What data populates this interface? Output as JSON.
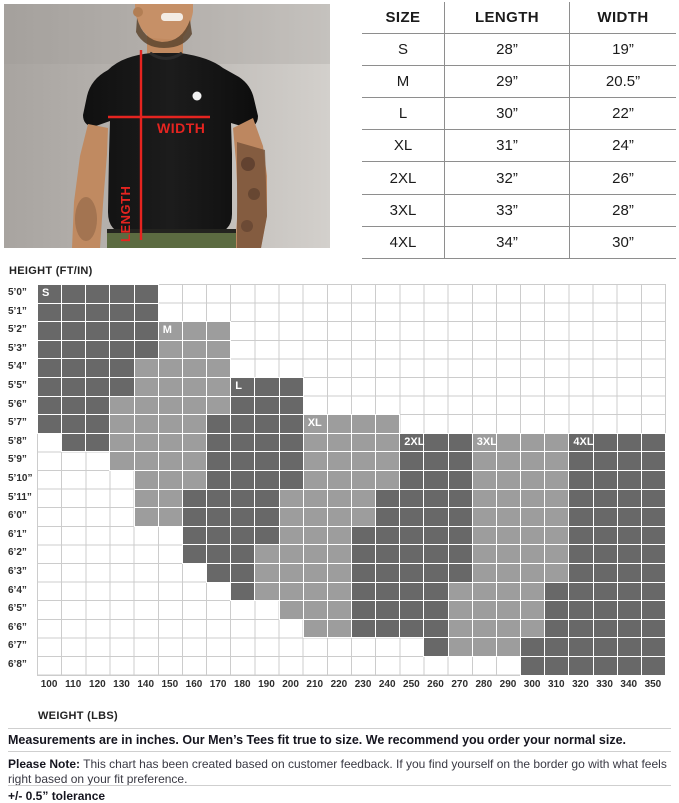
{
  "colors": {
    "accent_red": "#e52420",
    "cell_dark": "#686868",
    "cell_medium": "#9d9d9d",
    "grid_line": "#cccccc"
  },
  "photo": {
    "width_label": "WIDTH",
    "length_label": "LENGTH"
  },
  "notes": {
    "line1": "Measurements are in inches. Our Men’s Tees fit true to size. We recommend you order your normal size.",
    "note_label": "Please Note:",
    "note_rest": " This chart has been created based on customer feedback. If you find yourself on the border go with what feels right based on your fit preference.",
    "tolerance": "+/- 0.5” tolerance"
  },
  "chart_data": [
    {
      "type": "table",
      "title": "T-shirt measurements by size",
      "columns": [
        "SIZE",
        "LENGTH",
        "WIDTH"
      ],
      "rows": [
        [
          "S",
          "28”",
          "19”"
        ],
        [
          "M",
          "29”",
          "20.5”"
        ],
        [
          "L",
          "30”",
          "22”"
        ],
        [
          "XL",
          "31”",
          "24”"
        ],
        [
          "2XL",
          "32”",
          "26”"
        ],
        [
          "3XL",
          "33”",
          "28”"
        ],
        [
          "4XL",
          "34”",
          "30”"
        ]
      ]
    },
    {
      "type": "heatmap",
      "title": "Recommended size by height and weight",
      "y_axis_title": "HEIGHT (FT/IN)",
      "x_axis_title": "WEIGHT (LBS)",
      "y": [
        "5’0”",
        "5’1”",
        "5’2”",
        "5’3”",
        "5’4”",
        "5’5”",
        "5’6”",
        "5’7”",
        "5’8”",
        "5’9”",
        "5’10”",
        "5’11”",
        "6’0”",
        "6’1”",
        "6’2”",
        "6’3”",
        "6’4”",
        "6’5”",
        "6’6”",
        "6’7”",
        "6’8”"
      ],
      "x": [
        "100",
        "110",
        "120",
        "130",
        "140",
        "150",
        "160",
        "170",
        "180",
        "190",
        "200",
        "210",
        "220",
        "230",
        "240",
        "250",
        "260",
        "270",
        "280",
        "290",
        "300",
        "310",
        "320",
        "330",
        "340",
        "350"
      ],
      "shade_by_size": {
        "S": "dark",
        "M": "medium",
        "L": "dark",
        "XL": "medium",
        "2XL": "dark",
        "3XL": "medium",
        "4XL": "dark"
      },
      "colors": {
        "dark": "#686868",
        "medium": "#9d9d9d"
      },
      "size_labels": [
        {
          "text": "S",
          "row": 0,
          "col": 0
        },
        {
          "text": "M",
          "row": 2,
          "col": 5
        },
        {
          "text": "L",
          "row": 5,
          "col": 8
        },
        {
          "text": "XL",
          "row": 7,
          "col": 11
        },
        {
          "text": "2XL",
          "row": 8,
          "col": 15
        },
        {
          "text": "3XL",
          "row": 8,
          "col": 18
        },
        {
          "text": "4XL",
          "row": 8,
          "col": 22
        }
      ],
      "rows": [
        [
          {
            "size": "S",
            "start": 0,
            "end": 4
          }
        ],
        [
          {
            "size": "S",
            "start": 0,
            "end": 4
          }
        ],
        [
          {
            "size": "S",
            "start": 0,
            "end": 4
          },
          {
            "size": "M",
            "start": 5,
            "end": 7
          }
        ],
        [
          {
            "size": "S",
            "start": 0,
            "end": 4
          },
          {
            "size": "M",
            "start": 5,
            "end": 7
          }
        ],
        [
          {
            "size": "S",
            "start": 0,
            "end": 3
          },
          {
            "size": "M",
            "start": 4,
            "end": 7
          }
        ],
        [
          {
            "size": "S",
            "start": 0,
            "end": 3
          },
          {
            "size": "M",
            "start": 4,
            "end": 7
          },
          {
            "size": "L",
            "start": 8,
            "end": 10
          }
        ],
        [
          {
            "size": "S",
            "start": 0,
            "end": 2
          },
          {
            "size": "M",
            "start": 3,
            "end": 7
          },
          {
            "size": "L",
            "start": 8,
            "end": 10
          }
        ],
        [
          {
            "size": "S",
            "start": 0,
            "end": 2
          },
          {
            "size": "M",
            "start": 3,
            "end": 6
          },
          {
            "size": "L",
            "start": 7,
            "end": 10
          },
          {
            "size": "XL",
            "start": 11,
            "end": 14
          }
        ],
        [
          {
            "size": "S",
            "start": 1,
            "end": 2
          },
          {
            "size": "M",
            "start": 3,
            "end": 6
          },
          {
            "size": "L",
            "start": 7,
            "end": 10
          },
          {
            "size": "XL",
            "start": 11,
            "end": 14
          },
          {
            "size": "2XL",
            "start": 15,
            "end": 17
          },
          {
            "size": "3XL",
            "start": 18,
            "end": 21
          },
          {
            "size": "4XL",
            "start": 22,
            "end": 25
          }
        ],
        [
          {
            "size": "M",
            "start": 3,
            "end": 6
          },
          {
            "size": "L",
            "start": 7,
            "end": 10
          },
          {
            "size": "XL",
            "start": 11,
            "end": 14
          },
          {
            "size": "2XL",
            "start": 15,
            "end": 17
          },
          {
            "size": "3XL",
            "start": 18,
            "end": 21
          },
          {
            "size": "4XL",
            "start": 22,
            "end": 25
          }
        ],
        [
          {
            "size": "M",
            "start": 4,
            "end": 6
          },
          {
            "size": "L",
            "start": 7,
            "end": 10
          },
          {
            "size": "XL",
            "start": 11,
            "end": 14
          },
          {
            "size": "2XL",
            "start": 15,
            "end": 17
          },
          {
            "size": "3XL",
            "start": 18,
            "end": 21
          },
          {
            "size": "4XL",
            "start": 22,
            "end": 25
          }
        ],
        [
          {
            "size": "M",
            "start": 4,
            "end": 5
          },
          {
            "size": "L",
            "start": 6,
            "end": 9
          },
          {
            "size": "XL",
            "start": 10,
            "end": 13
          },
          {
            "size": "2XL",
            "start": 14,
            "end": 17
          },
          {
            "size": "3XL",
            "start": 18,
            "end": 21
          },
          {
            "size": "4XL",
            "start": 22,
            "end": 25
          }
        ],
        [
          {
            "size": "M",
            "start": 4,
            "end": 5
          },
          {
            "size": "L",
            "start": 6,
            "end": 9
          },
          {
            "size": "XL",
            "start": 10,
            "end": 13
          },
          {
            "size": "2XL",
            "start": 14,
            "end": 17
          },
          {
            "size": "3XL",
            "start": 18,
            "end": 21
          },
          {
            "size": "4XL",
            "start": 22,
            "end": 25
          }
        ],
        [
          {
            "size": "L",
            "start": 6,
            "end": 9
          },
          {
            "size": "XL",
            "start": 10,
            "end": 12
          },
          {
            "size": "2XL",
            "start": 13,
            "end": 17
          },
          {
            "size": "3XL",
            "start": 18,
            "end": 21
          },
          {
            "size": "4XL",
            "start": 22,
            "end": 25
          }
        ],
        [
          {
            "size": "L",
            "start": 6,
            "end": 8
          },
          {
            "size": "XL",
            "start": 9,
            "end": 12
          },
          {
            "size": "2XL",
            "start": 13,
            "end": 17
          },
          {
            "size": "3XL",
            "start": 18,
            "end": 21
          },
          {
            "size": "4XL",
            "start": 22,
            "end": 25
          }
        ],
        [
          {
            "size": "L",
            "start": 7,
            "end": 8
          },
          {
            "size": "XL",
            "start": 9,
            "end": 12
          },
          {
            "size": "2XL",
            "start": 13,
            "end": 17
          },
          {
            "size": "3XL",
            "start": 18,
            "end": 21
          },
          {
            "size": "4XL",
            "start": 22,
            "end": 25
          }
        ],
        [
          {
            "size": "L",
            "start": 8,
            "end": 8
          },
          {
            "size": "XL",
            "start": 9,
            "end": 12
          },
          {
            "size": "2XL",
            "start": 13,
            "end": 16
          },
          {
            "size": "3XL",
            "start": 17,
            "end": 20
          },
          {
            "size": "4XL",
            "start": 21,
            "end": 25
          }
        ],
        [
          {
            "size": "XL",
            "start": 10,
            "end": 12
          },
          {
            "size": "2XL",
            "start": 13,
            "end": 16
          },
          {
            "size": "3XL",
            "start": 17,
            "end": 20
          },
          {
            "size": "4XL",
            "start": 21,
            "end": 25
          }
        ],
        [
          {
            "size": "XL",
            "start": 11,
            "end": 12
          },
          {
            "size": "2XL",
            "start": 13,
            "end": 16
          },
          {
            "size": "3XL",
            "start": 17,
            "end": 20
          },
          {
            "size": "4XL",
            "start": 21,
            "end": 25
          }
        ],
        [
          {
            "size": "2XL",
            "start": 16,
            "end": 16
          },
          {
            "size": "3XL",
            "start": 17,
            "end": 19
          },
          {
            "size": "4XL",
            "start": 20,
            "end": 25
          }
        ],
        [
          {
            "size": "4XL",
            "start": 20,
            "end": 25
          }
        ]
      ]
    }
  ]
}
